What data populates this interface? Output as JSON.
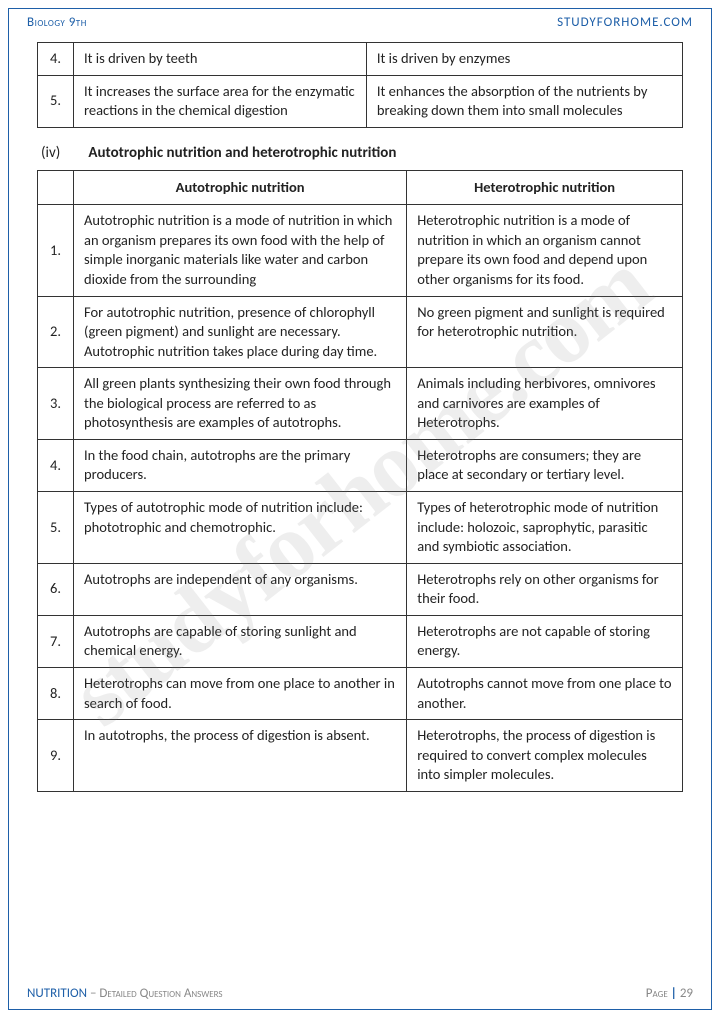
{
  "header": {
    "left": "Biology 9th",
    "right": "STUDYFORHOME.COM"
  },
  "watermark": "studyforhome.com",
  "table1": {
    "rows": [
      {
        "n": "4.",
        "a": "It is driven by teeth",
        "b": "It is driven by enzymes"
      },
      {
        "n": "5.",
        "a": "It increases the surface area for the enzymatic reactions in the chemical digestion",
        "b": "It enhances the absorption of the nutrients by breaking down them into small molecules"
      }
    ]
  },
  "section": {
    "roman": "(iv)",
    "title": "Autotrophic nutrition and heterotrophic nutrition"
  },
  "table2": {
    "headA": "Autotrophic nutrition",
    "headB": "Heterotrophic nutrition",
    "rows": [
      {
        "n": "1.",
        "a": "Autotrophic nutrition is a mode of nutrition in which an organism prepares its own food with the help of simple inorganic materials like water and carbon dioxide from the surrounding",
        "b": "Heterotrophic nutrition is a mode of nutrition in which an organism cannot prepare its own food and depend upon other organisms for its food."
      },
      {
        "n": "2.",
        "a": "For autotrophic nutrition, presence of chlorophyll (green pigment) and sunlight are necessary. Autotrophic nutrition takes place during day time.",
        "b": "No green pigment and sunlight is required for heterotrophic nutrition."
      },
      {
        "n": "3.",
        "a": "All green plants synthesizing their own food through the biological process are referred to as photosynthesis are examples of autotrophs.",
        "b": "Animals including herbivores, omnivores and carnivores are examples of Heterotrophs."
      },
      {
        "n": "4.",
        "a": "In the food chain, autotrophs are the primary producers.",
        "b": "Heterotrophs are consumers; they are place at secondary or tertiary level."
      },
      {
        "n": "5.",
        "a": "Types of autotrophic mode of nutrition include: phototrophic and chemotrophic.",
        "b": "Types of heterotrophic mode of nutrition include: holozoic, saprophytic, parasitic and symbiotic association."
      },
      {
        "n": "6.",
        "a": "Autotrophs are independent of any organisms.",
        "b": "Heterotrophs rely on other organisms for their food."
      },
      {
        "n": "7.",
        "a": "Autotrophs are capable of storing sunlight and chemical energy.",
        "b": "Heterotrophs are not capable of storing energy."
      },
      {
        "n": "8.",
        "a": "Heterotrophs can move from one place to another in search of food.",
        "b": "Autotrophs cannot move from one place to another."
      },
      {
        "n": "9.",
        "a": "In autotrophs, the process of digestion is absent.",
        "b": "Heterotrophs, the process of digestion is required to convert complex molecules into simpler molecules."
      }
    ]
  },
  "footer": {
    "chapter": "NUTRITION",
    "sub": " – Detailed Question Answers",
    "pageLabel": "Page ",
    "pageNum": "29"
  }
}
